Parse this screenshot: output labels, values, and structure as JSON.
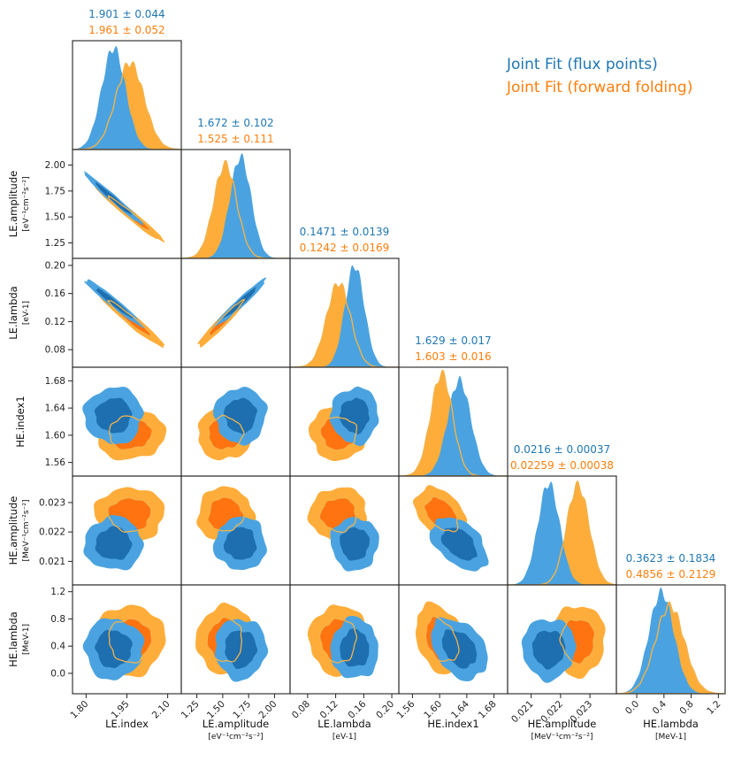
{
  "colors": {
    "flux": "#1f77b4",
    "flux_fill": "#4aa3e0",
    "flux_inner": "#1e6fb0",
    "fwd": "#ff7f0e",
    "fwd_fill": "#ffad3a",
    "fwd_inner": "#ff7410",
    "fwd_outline": "#f2b24a"
  },
  "legend": {
    "flux_label": "Joint Fit (flux points)",
    "fwd_label": "Joint Fit (forward folding)"
  },
  "chart_data": {
    "type": "corner",
    "title": "",
    "series": [
      {
        "name": "Joint Fit (flux points)",
        "color_key": "flux"
      },
      {
        "name": "Joint Fit (forward folding)",
        "color_key": "fwd"
      }
    ],
    "parameters": [
      {
        "name": "LE.index",
        "unit": "",
        "range": [
          1.75,
          2.15
        ],
        "ticks": [
          1.8,
          1.95,
          2.1
        ],
        "tick_labels": [
          "1.80",
          "1.95",
          "2.10"
        ],
        "summary": [
          "1.901 ± 0.044",
          "1.961 ± 0.052"
        ],
        "mean": [
          1.901,
          1.961
        ],
        "sigma": [
          0.044,
          0.052
        ]
      },
      {
        "name": "LE.amplitude",
        "unit": "[eV⁻¹cm⁻²s⁻²]",
        "range": [
          1.1,
          2.15
        ],
        "ticks": [
          1.25,
          1.5,
          1.75,
          2.0
        ],
        "tick_labels": [
          "1.25",
          "1.50",
          "1.75",
          "2.00"
        ],
        "summary": [
          "1.672 ± 0.102",
          "1.525 ± 0.111"
        ],
        "mean": [
          1.672,
          1.525
        ],
        "sigma": [
          0.102,
          0.111
        ]
      },
      {
        "name": "LE.lambda",
        "unit": "[eV-1]",
        "range": [
          0.055,
          0.21
        ],
        "ticks": [
          0.08,
          0.12,
          0.16,
          0.2
        ],
        "tick_labels": [
          "0.08",
          "0.12",
          "0.16",
          "0.20"
        ],
        "summary": [
          "0.1471 ± 0.0139",
          "0.1242 ± 0.0169"
        ],
        "mean": [
          0.1471,
          0.1242
        ],
        "sigma": [
          0.0139,
          0.0169
        ]
      },
      {
        "name": "HE.index1",
        "unit": "",
        "range": [
          1.54,
          1.7
        ],
        "ticks": [
          1.56,
          1.6,
          1.64,
          1.68
        ],
        "tick_labels": [
          "1.56",
          "1.60",
          "1.64",
          "1.68"
        ],
        "summary": [
          "1.629 ± 0.017",
          "1.603 ± 0.016"
        ],
        "mean": [
          1.629,
          1.603
        ],
        "sigma": [
          0.017,
          0.016
        ]
      },
      {
        "name": "HE.amplitude",
        "unit": "[MeV⁻¹cm⁻²s⁻²]",
        "range": [
          0.0202,
          0.0239
        ],
        "ticks": [
          0.021,
          0.022,
          0.023
        ],
        "tick_labels": [
          "0.021",
          "0.022",
          "0.023"
        ],
        "summary": [
          "0.0216 ± 0.00037",
          "0.02259 ± 0.00038"
        ],
        "mean": [
          0.0216,
          0.02259
        ],
        "sigma": [
          0.00037,
          0.00038
        ]
      },
      {
        "name": "HE.lambda",
        "unit": "[MeV-1]",
        "range": [
          -0.3,
          1.3
        ],
        "ticks": [
          0.0,
          0.4,
          0.8,
          1.2
        ],
        "tick_labels": [
          "0.0",
          "0.4",
          "0.8",
          "1.2"
        ],
        "summary": [
          "0.3623 ± 0.1834",
          "0.4856 ± 0.2129"
        ],
        "mean": [
          0.3623,
          0.4856
        ],
        "sigma": [
          0.1834,
          0.2129
        ]
      }
    ],
    "correlations": [
      {
        "pair": [
          0,
          1
        ],
        "rho": -0.98
      },
      {
        "pair": [
          0,
          2
        ],
        "rho": -0.97
      },
      {
        "pair": [
          1,
          2
        ],
        "rho": 0.97
      },
      {
        "pair": [
          3,
          4
        ],
        "rho": -0.45
      },
      {
        "pair": [
          3,
          5
        ],
        "rho": -0.35
      }
    ]
  }
}
